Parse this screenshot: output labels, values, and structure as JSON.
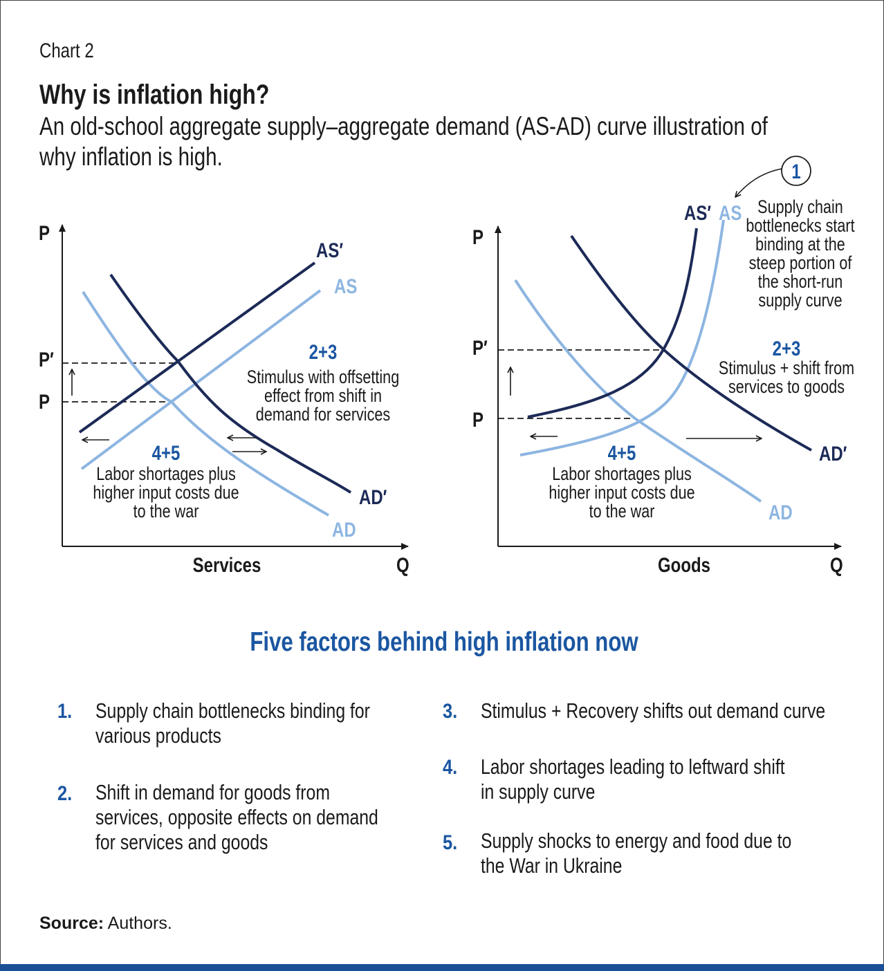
{
  "header": {
    "chart_label": "Chart 2",
    "title": "Why is inflation high?",
    "subtitle_lines": [
      "An old-school aggregate supply–aggregate demand (AS-AD) curve illustration of",
      "why inflation is high."
    ]
  },
  "left_diagram": {
    "y_axis": "P",
    "x_axis": "Q",
    "x_title": "Services",
    "p_prime": "P′",
    "p": "P",
    "curves": {
      "as_prime": "AS′",
      "as": "AS",
      "ad_prime": "AD′",
      "ad": "AD"
    },
    "annotation_demand": {
      "tag": "2+3",
      "lines": [
        "Stimulus with offsetting",
        "effect from shift in",
        "demand for services"
      ]
    },
    "annotation_supply": {
      "tag": "4+5",
      "lines": [
        "Labor shortages plus",
        "higher input costs due",
        "to the war"
      ]
    }
  },
  "right_diagram": {
    "y_axis": "P",
    "x_axis": "Q",
    "x_title": "Goods",
    "p_prime": "P′",
    "p": "P",
    "curves": {
      "as_prime": "AS′",
      "as": "AS",
      "ad_prime": "AD′",
      "ad": "AD"
    },
    "callout_number": "1",
    "callout_lines": [
      "Supply chain",
      "bottlenecks start",
      "binding at the",
      "steep portion of",
      "the short-run",
      "supply curve"
    ],
    "annotation_demand": {
      "tag": "2+3",
      "lines": [
        "Stimulus + shift from",
        "services to goods"
      ]
    },
    "annotation_supply": {
      "tag": "4+5",
      "lines": [
        "Labor shortages plus",
        "higher input costs due",
        "to the war"
      ]
    }
  },
  "factors": {
    "heading": "Five factors behind high inflation now",
    "items": [
      {
        "num": "1.",
        "lines": [
          "Supply chain bottlenecks binding for",
          "various products"
        ]
      },
      {
        "num": "2.",
        "lines": [
          "Shift in demand for goods from",
          "services, opposite effects on demand",
          "for services and goods"
        ]
      },
      {
        "num": "3.",
        "lines": [
          "Stimulus + Recovery shifts out demand curve"
        ]
      },
      {
        "num": "4.",
        "lines": [
          "Labor shortages leading to leftward shift",
          "in supply curve"
        ]
      },
      {
        "num": "5.",
        "lines": [
          "Supply shocks to energy and food due to",
          "the War in Ukraine"
        ]
      }
    ]
  },
  "source": {
    "label": "Source:",
    "text": " Authors."
  },
  "colors": {
    "navy": "#1c2a57",
    "light_blue": "#8db5e1",
    "accent_blue": "#1b56a1",
    "bar": "#1a4f96"
  }
}
